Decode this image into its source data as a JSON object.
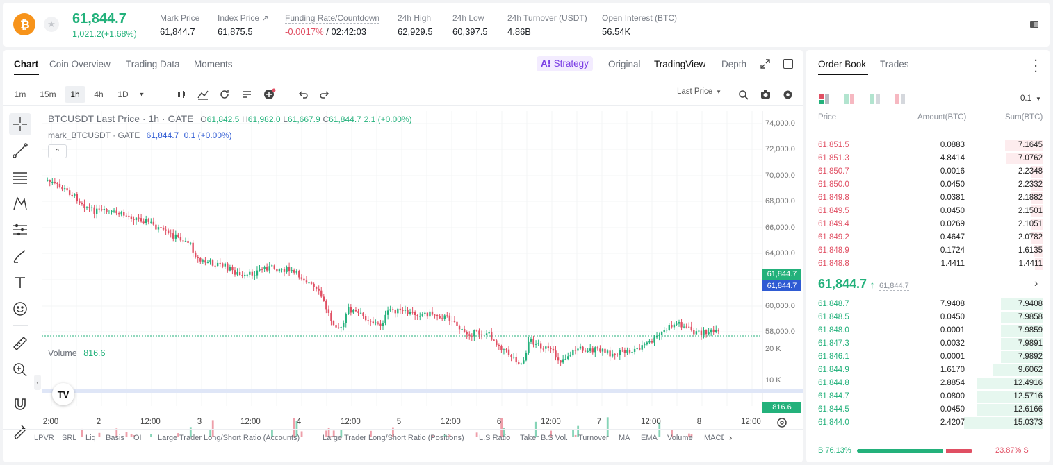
{
  "ticker": {
    "last_price": "61,844.7",
    "change": "1,021.2(+1.68%)",
    "stats": [
      {
        "label": "Mark Price",
        "value": "61,844.7"
      },
      {
        "label": "Index Price ↗",
        "value": "61,875.5"
      },
      {
        "label": "Funding Rate/Countdown",
        "value_neg": "-0.0017%",
        "value": " / 02:42:03"
      },
      {
        "label": "24h High",
        "value": "62,929.5"
      },
      {
        "label": "24h Low",
        "value": "60,397.5"
      },
      {
        "label": "24h Turnover (USDT)",
        "value": "4.86B"
      },
      {
        "label": "Open Interest (BTC)",
        "value": "56.54K"
      }
    ]
  },
  "chart_tabs": [
    "Chart",
    "Coin Overview",
    "Trading Data",
    "Moments"
  ],
  "view_tabs": {
    "strategy": "Strategy",
    "original": "Original",
    "tradingview": "TradingView",
    "depth": "Depth"
  },
  "timeframes": [
    "1m",
    "15m",
    "1h",
    "4h",
    "1D"
  ],
  "price_type": "Last Price",
  "legend": {
    "symbol": "BTCUSDT Last Price · 1h · GATE",
    "o_label": "O",
    "o": "61,842.5",
    "h_label": "H",
    "h": "61,982.0",
    "l_label": "L",
    "l": "61,667.9",
    "c_label": "C",
    "c": "61,844.7",
    "chg": "2.1 (+0.00%)",
    "mark_label": "mark_BTCUSDT · GATE",
    "mark_val": "61,844.7",
    "mark_chg": "0.1 (+0.00%)",
    "volume_label": "Volume",
    "volume_val": "816.6"
  },
  "price_axis": [
    "74,000.0",
    "72,000.0",
    "70,000.0",
    "68,000.0",
    "66,000.0",
    "64,000.0",
    "60,000.0",
    "58,000.0"
  ],
  "price_tags": {
    "last": "61,844.7",
    "mark": "61,844.7",
    "volume": "816.6"
  },
  "volume_axis": [
    "20 K",
    "10 K"
  ],
  "time_axis": [
    "2:00",
    "2",
    "12:00",
    "3",
    "12:00",
    "4",
    "12:00",
    "5",
    "12:00",
    "6",
    "12:00",
    "7",
    "12:00",
    "8",
    "12:00"
  ],
  "indicators": [
    "LPVR",
    "SRL",
    "Liq",
    "Basis",
    "OI",
    "Large Trader Long/Short Ratio (Accounts)",
    "Large Trader Long/Short Ratio (Positions)",
    "L.S Ratio",
    "Taker B.S Vol.",
    "Turnover",
    "MA",
    "EMA",
    "Volume",
    "MACD"
  ],
  "tv_logo": "TV",
  "orderbook": {
    "tabs": [
      "Order Book",
      "Trades"
    ],
    "precision": "0.1",
    "headers": {
      "price": "Price",
      "amount": "Amount(BTC)",
      "sum": "Sum(BTC)"
    },
    "asks": [
      {
        "price": "61,851.5",
        "amount": "0.0883",
        "sum": "7.1645",
        "depth": 0.476
      },
      {
        "price": "61,851.3",
        "amount": "4.8414",
        "sum": "7.0762",
        "depth": 0.47
      },
      {
        "price": "61,850.7",
        "amount": "0.0016",
        "sum": "2.2348",
        "depth": 0.149
      },
      {
        "price": "61,850.0",
        "amount": "0.0450",
        "sum": "2.2332",
        "depth": 0.148
      },
      {
        "price": "61,849.8",
        "amount": "0.0381",
        "sum": "2.1882",
        "depth": 0.145
      },
      {
        "price": "61,849.5",
        "amount": "0.0450",
        "sum": "2.1501",
        "depth": 0.143
      },
      {
        "price": "61,849.4",
        "amount": "0.0269",
        "sum": "2.1051",
        "depth": 0.14
      },
      {
        "price": "61,849.2",
        "amount": "0.4647",
        "sum": "2.0782",
        "depth": 0.138
      },
      {
        "price": "61,848.9",
        "amount": "0.1724",
        "sum": "1.6135",
        "depth": 0.107
      },
      {
        "price": "61,848.8",
        "amount": "1.4411",
        "sum": "1.4411",
        "depth": 0.096
      }
    ],
    "mid_price": "61,844.7",
    "mid_mark": "61,844.7",
    "bids": [
      {
        "price": "61,848.7",
        "amount": "7.9408",
        "sum": "7.9408",
        "depth": 0.528
      },
      {
        "price": "61,848.5",
        "amount": "0.0450",
        "sum": "7.9858",
        "depth": 0.531
      },
      {
        "price": "61,848.0",
        "amount": "0.0001",
        "sum": "7.9859",
        "depth": 0.531
      },
      {
        "price": "61,847.3",
        "amount": "0.0032",
        "sum": "7.9891",
        "depth": 0.531
      },
      {
        "price": "61,846.1",
        "amount": "0.0001",
        "sum": "7.9892",
        "depth": 0.531
      },
      {
        "price": "61,844.9",
        "amount": "1.6170",
        "sum": "9.6062",
        "depth": 0.639
      },
      {
        "price": "61,844.8",
        "amount": "2.8854",
        "sum": "12.4916",
        "depth": 0.83
      },
      {
        "price": "61,844.7",
        "amount": "0.0800",
        "sum": "12.5716",
        "depth": 0.836
      },
      {
        "price": "61,844.5",
        "amount": "0.0450",
        "sum": "12.6166",
        "depth": 0.839
      },
      {
        "price": "61,844.0",
        "amount": "2.4207",
        "sum": "15.0373",
        "depth": 1.0
      }
    ],
    "buy_ratio_label": "B 76.13%",
    "sell_ratio_label": "23.87% S",
    "buy_ratio": 0.7613
  },
  "colors": {
    "up": "#23b17b",
    "down": "#e04f63",
    "accent": "#f7931a",
    "mark": "#2f5bd3",
    "strategy": "#7b3fe4"
  }
}
